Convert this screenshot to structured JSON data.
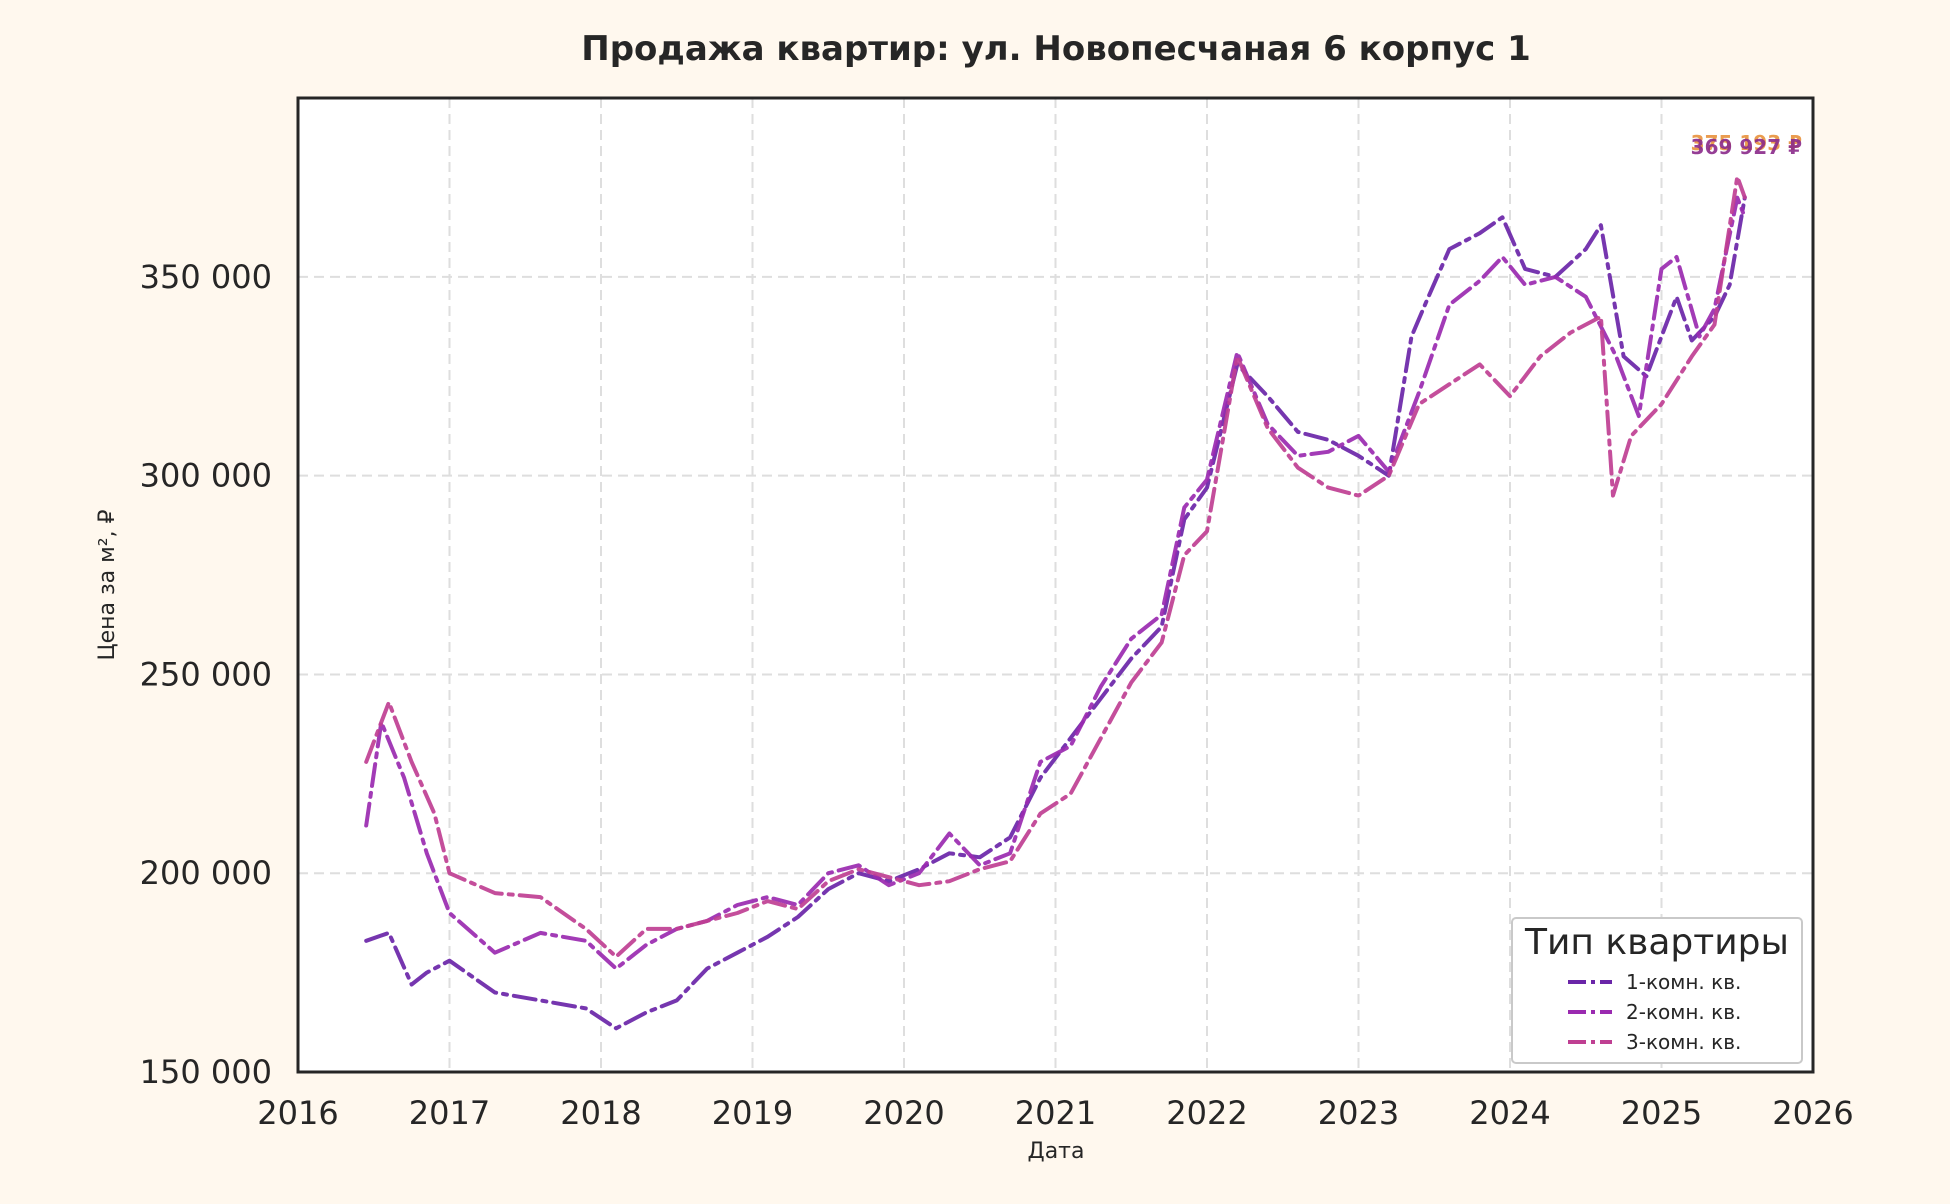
{
  "chart_data": {
    "type": "line",
    "title": "Продажа квартир: ул. Новопесчаная 6 корпус 1",
    "xlabel": "Дата",
    "ylabel": "Цена за м², ₽",
    "xlim": [
      2016,
      2026
    ],
    "ylim": [
      150000,
      395000
    ],
    "x_ticks": [
      "2016",
      "2017",
      "2018",
      "2019",
      "2020",
      "2021",
      "2022",
      "2023",
      "2024",
      "2025",
      "2026"
    ],
    "y_ticks": [
      {
        "value": 150000,
        "label": "150 000"
      },
      {
        "value": 200000,
        "label": "200 000"
      },
      {
        "value": 250000,
        "label": "250 000"
      },
      {
        "value": 300000,
        "label": "300 000"
      },
      {
        "value": 350000,
        "label": "350 000"
      }
    ],
    "grid": true,
    "legend": {
      "title": "Тип квартиры",
      "placement": "lower-right"
    },
    "end_labels": [
      "375 193 ₽",
      "369 927 ₽"
    ],
    "series": [
      {
        "name": "1-комн. кв.",
        "color": "#6a25a8",
        "x": [
          2016.45,
          2016.6,
          2016.75,
          2016.85,
          2017.0,
          2017.3,
          2017.6,
          2017.9,
          2018.1,
          2018.3,
          2018.5,
          2018.7,
          2018.9,
          2019.1,
          2019.3,
          2019.5,
          2019.7,
          2019.9,
          2020.1,
          2020.3,
          2020.5,
          2020.7,
          2020.9,
          2021.1,
          2021.3,
          2021.5,
          2021.7,
          2021.85,
          2022.0,
          2022.2,
          2022.4,
          2022.6,
          2022.8,
          2023.0,
          2023.2,
          2023.35,
          2023.45,
          2023.6,
          2023.8,
          2023.95,
          2024.1,
          2024.3,
          2024.5,
          2024.6,
          2024.75,
          2024.9,
          2025.0,
          2025.1,
          2025.2,
          2025.35,
          2025.45,
          2025.55
        ],
        "values": [
          183000,
          185000,
          172000,
          175000,
          178000,
          170000,
          168000,
          166000,
          161000,
          165000,
          168000,
          176000,
          180000,
          184000,
          189000,
          196000,
          200000,
          198000,
          201000,
          205000,
          204000,
          209000,
          224000,
          234000,
          244000,
          254000,
          262000,
          289000,
          297000,
          328000,
          320000,
          311000,
          309000,
          305000,
          300000,
          335000,
          344000,
          357000,
          361000,
          365000,
          352000,
          350000,
          357000,
          363000,
          330000,
          325000,
          335000,
          345000,
          334000,
          340000,
          348000,
          370000
        ]
      },
      {
        "name": "2-комн. кв.",
        "color": "#9a2ab0",
        "x": [
          2016.45,
          2016.55,
          2016.7,
          2016.85,
          2017.0,
          2017.3,
          2017.6,
          2017.9,
          2018.1,
          2018.3,
          2018.5,
          2018.7,
          2018.9,
          2019.1,
          2019.3,
          2019.5,
          2019.7,
          2019.9,
          2020.1,
          2020.3,
          2020.5,
          2020.7,
          2020.9,
          2021.1,
          2021.3,
          2021.5,
          2021.7,
          2021.85,
          2022.0,
          2022.2,
          2022.4,
          2022.6,
          2022.8,
          2023.0,
          2023.2,
          2023.4,
          2023.6,
          2023.8,
          2023.95,
          2024.1,
          2024.3,
          2024.5,
          2024.7,
          2024.85,
          2025.0,
          2025.1,
          2025.25,
          2025.35,
          2025.5,
          2025.55
        ],
        "values": [
          212000,
          238000,
          224000,
          205000,
          190000,
          180000,
          185000,
          183000,
          176000,
          182000,
          186000,
          188000,
          192000,
          194000,
          192000,
          200000,
          202000,
          197000,
          200000,
          210000,
          202000,
          205000,
          228000,
          232000,
          247000,
          259000,
          265000,
          292000,
          299000,
          331000,
          313000,
          305000,
          306000,
          310000,
          301000,
          321000,
          343000,
          349000,
          355000,
          348000,
          350000,
          345000,
          330000,
          315000,
          352000,
          355000,
          335000,
          342000,
          369927,
          365000
        ]
      },
      {
        "name": "3-комн. кв.",
        "color": "#bf3f92",
        "x": [
          2016.45,
          2016.6,
          2016.75,
          2016.9,
          2017.0,
          2017.3,
          2017.6,
          2017.9,
          2018.1,
          2018.3,
          2018.5,
          2018.7,
          2018.9,
          2019.1,
          2019.3,
          2019.5,
          2019.7,
          2019.9,
          2020.1,
          2020.3,
          2020.5,
          2020.7,
          2020.9,
          2021.1,
          2021.3,
          2021.5,
          2021.7,
          2021.85,
          2022.0,
          2022.2,
          2022.4,
          2022.6,
          2022.8,
          2023.0,
          2023.2,
          2023.4,
          2023.6,
          2023.8,
          2024.0,
          2024.2,
          2024.4,
          2024.6,
          2024.68,
          2024.8,
          2025.0,
          2025.2,
          2025.35,
          2025.5,
          2025.55
        ],
        "values": [
          228000,
          243000,
          228000,
          215000,
          200000,
          195000,
          194000,
          186000,
          179000,
          186000,
          186000,
          188000,
          190000,
          193000,
          191000,
          198000,
          201000,
          199000,
          197000,
          198000,
          201000,
          203000,
          215000,
          220000,
          234000,
          248000,
          258000,
          280000,
          286000,
          330000,
          312000,
          302000,
          297000,
          295000,
          300000,
          318000,
          323000,
          328000,
          320000,
          330000,
          336000,
          340000,
          295000,
          310000,
          318000,
          330000,
          338000,
          375193,
          370000
        ]
      }
    ]
  }
}
